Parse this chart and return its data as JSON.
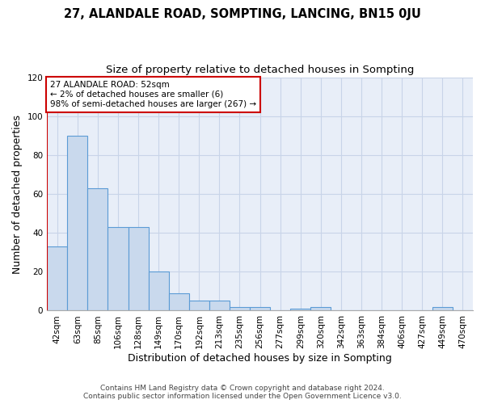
{
  "title": "27, ALANDALE ROAD, SOMPTING, LANCING, BN15 0JU",
  "subtitle": "Size of property relative to detached houses in Sompting",
  "xlabel": "Distribution of detached houses by size in Sompting",
  "ylabel": "Number of detached properties",
  "bar_labels": [
    "42sqm",
    "63sqm",
    "85sqm",
    "106sqm",
    "128sqm",
    "149sqm",
    "170sqm",
    "192sqm",
    "213sqm",
    "235sqm",
    "256sqm",
    "277sqm",
    "299sqm",
    "320sqm",
    "342sqm",
    "363sqm",
    "384sqm",
    "406sqm",
    "427sqm",
    "449sqm",
    "470sqm"
  ],
  "bar_values": [
    33,
    90,
    63,
    43,
    43,
    20,
    9,
    5,
    5,
    2,
    2,
    0,
    1,
    2,
    0,
    0,
    0,
    0,
    0,
    2,
    0
  ],
  "bar_color": "#c9d9ed",
  "bar_edge_color": "#5b9bd5",
  "annotation_line1": "27 ALANDALE ROAD: 52sqm",
  "annotation_line2": "← 2% of detached houses are smaller (6)",
  "annotation_line3": "98% of semi-detached houses are larger (267) →",
  "vline_color": "#cc0000",
  "annotation_box_color": "#ffffff",
  "annotation_box_edge": "#cc0000",
  "ylim": [
    0,
    120
  ],
  "yticks": [
    0,
    20,
    40,
    60,
    80,
    100,
    120
  ],
  "grid_color": "#c8d4e8",
  "bg_color": "#e8eef8",
  "footer_line1": "Contains HM Land Registry data © Crown copyright and database right 2024.",
  "footer_line2": "Contains public sector information licensed under the Open Government Licence v3.0.",
  "title_fontsize": 10.5,
  "subtitle_fontsize": 9.5,
  "axis_label_fontsize": 9,
  "tick_fontsize": 7.5,
  "annotation_fontsize": 7.5,
  "footer_fontsize": 6.5
}
